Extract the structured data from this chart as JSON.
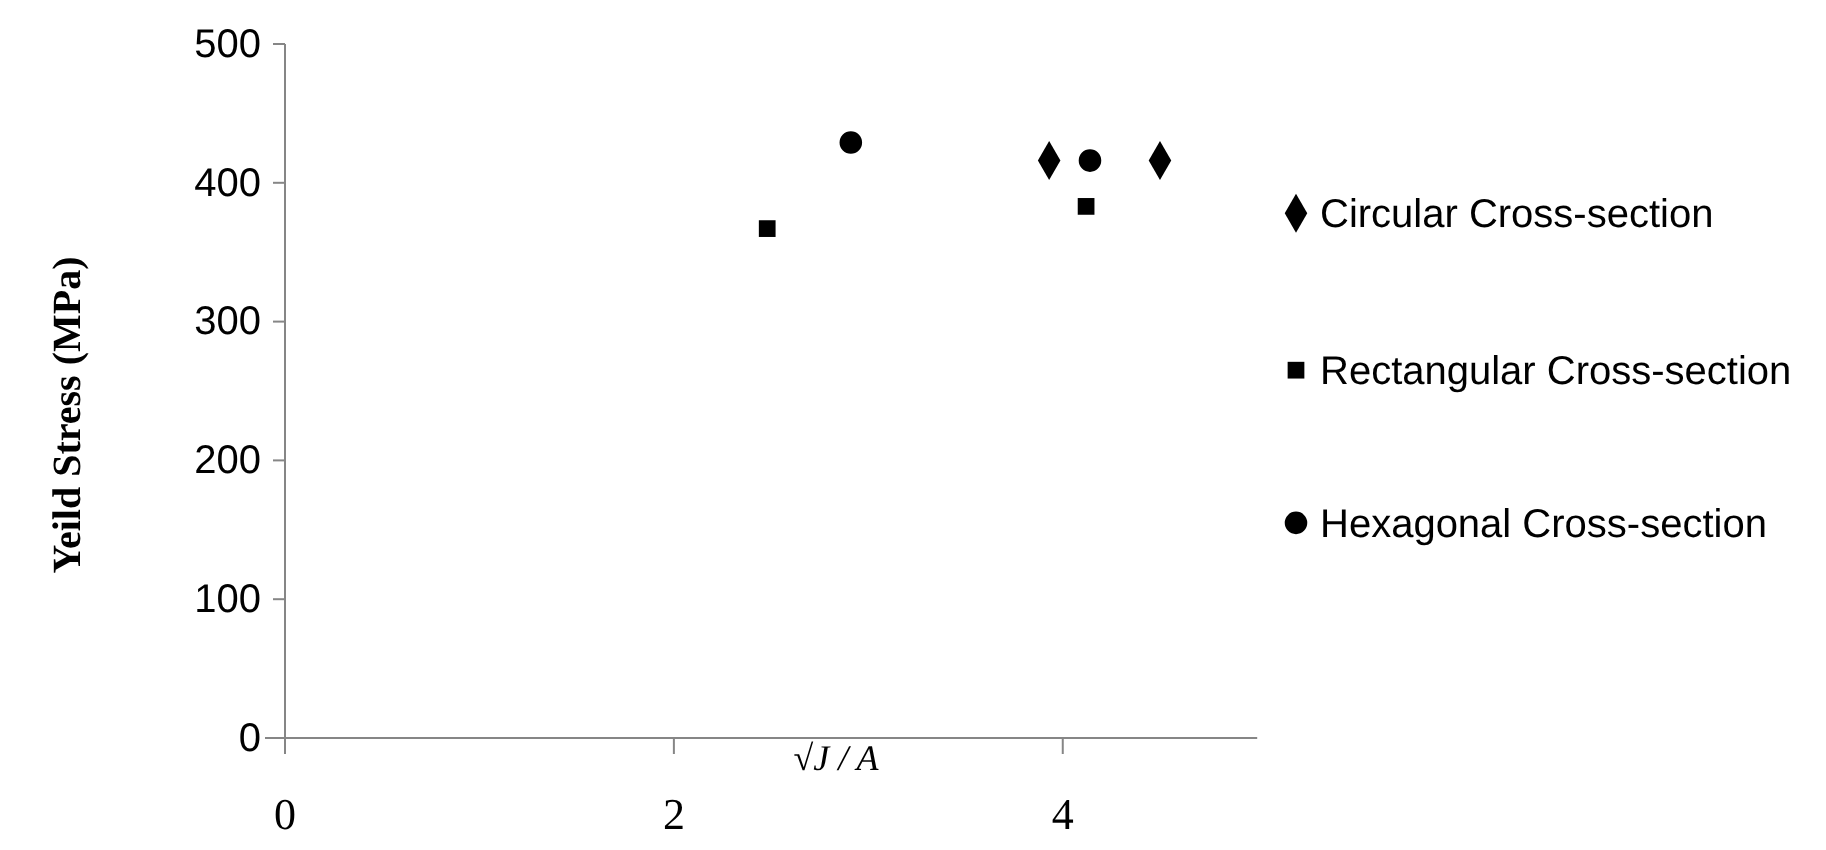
{
  "chart_data": {
    "type": "scatter",
    "xlabel": "√J / A",
    "ylabel": "Yeild Stress (MPa)",
    "xlim": [
      0,
      5
    ],
    "xticks": [
      0,
      2,
      4
    ],
    "ylim": [
      0,
      500
    ],
    "yticks": [
      0,
      100,
      200,
      300,
      400,
      500
    ],
    "grid": false,
    "legend": "right",
    "series": [
      {
        "name": "Circular Cross-section",
        "color": "#000000",
        "marker": "diamond",
        "x": [
          3.93,
          4.5
        ],
        "values": [
          416,
          416
        ]
      },
      {
        "name": "Rectangular Cross-section",
        "color": "#000000",
        "marker": "square",
        "x": [
          2.48,
          4.12
        ],
        "values": [
          367,
          383
        ]
      },
      {
        "name": "Hexagonal Cross-section",
        "color": "#000000",
        "marker": "circle",
        "x": [
          2.91,
          4.14
        ],
        "values": [
          429,
          416
        ]
      }
    ]
  }
}
